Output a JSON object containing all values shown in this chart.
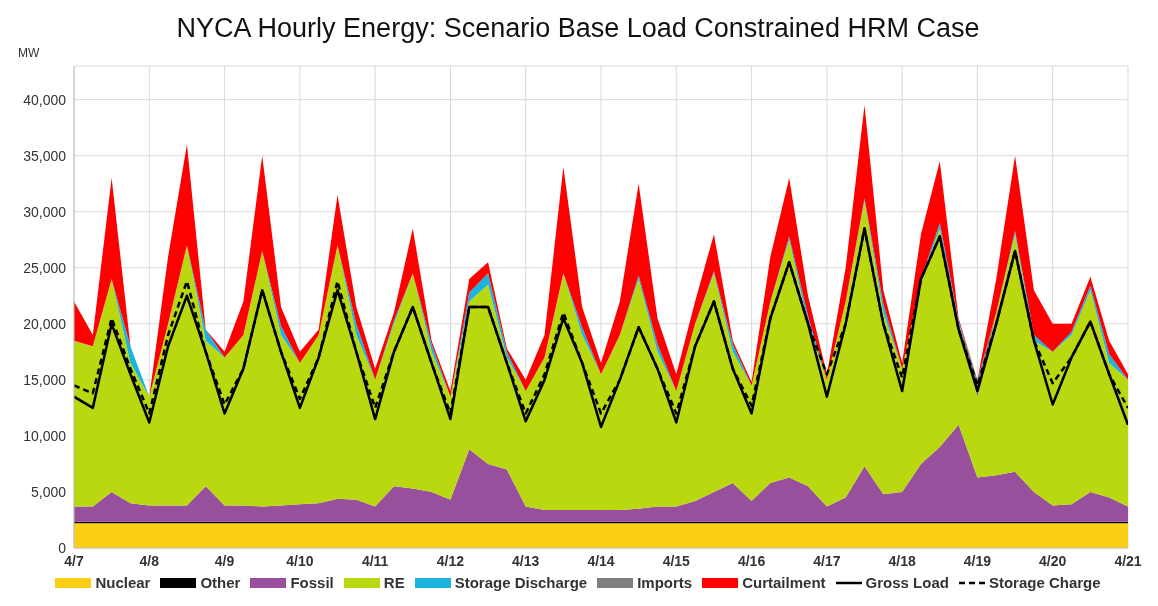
{
  "chart_data": {
    "type": "area",
    "title": "NYCA Hourly Energy: Scenario Base Load Constrained HRM Case",
    "ylabel": "MW",
    "stacked": true,
    "grid": true,
    "legend": "bottom",
    "marker": "none",
    "categories": [
      "4/7",
      null,
      null,
      null,
      "4/8",
      null,
      null,
      null,
      "4/9",
      null,
      null,
      null,
      "4/10",
      null,
      null,
      null,
      "4/11",
      null,
      null,
      null,
      "4/12",
      null,
      null,
      null,
      "4/13",
      null,
      null,
      null,
      "4/14",
      null,
      null,
      null,
      "4/15",
      null,
      null,
      null,
      "4/16",
      null,
      null,
      null,
      "4/17",
      null,
      null,
      null,
      "4/18",
      null,
      null,
      null,
      "4/19",
      null,
      null,
      null,
      "4/20",
      null,
      null,
      null,
      "4/21"
    ],
    "ylim": [
      0,
      43000
    ],
    "yticks": [
      0,
      {
        "value": 5000,
        "label": "5,000"
      },
      {
        "value": 10000,
        "label": "10,000"
      },
      {
        "value": 15000,
        "label": "15,000"
      },
      {
        "value": 20000,
        "label": "20,000"
      },
      {
        "value": 25000,
        "label": "25,000"
      },
      {
        "value": 30000,
        "label": "30,000"
      },
      {
        "value": 35000,
        "label": "35,000"
      },
      {
        "value": 40000,
        "label": "40,000"
      }
    ],
    "series": [
      {
        "name": "Nuclear",
        "color": "#fccf14",
        "values": [
          2200,
          2200,
          2200,
          2200,
          2200,
          2200,
          2200,
          2200,
          2200,
          2200,
          2200,
          2200,
          2200,
          2200,
          2200,
          2200,
          2200,
          2200,
          2200,
          2200,
          2200,
          2200,
          2200,
          2200,
          2200,
          2200,
          2200,
          2200,
          2200,
          2200,
          2200,
          2200,
          2200,
          2200,
          2200,
          2200,
          2200,
          2200,
          2200,
          2200,
          2200,
          2200,
          2200,
          2200,
          2200,
          2200,
          2200,
          2200,
          2200,
          2200,
          2200,
          2200,
          2200,
          2200,
          2200,
          2200,
          2200
        ]
      },
      {
        "name": "Other",
        "color": "#000000",
        "values": [
          150,
          150,
          150,
          150,
          150,
          150,
          150,
          150,
          150,
          150,
          150,
          150,
          150,
          150,
          150,
          150,
          150,
          150,
          150,
          150,
          150,
          150,
          150,
          150,
          150,
          150,
          150,
          150,
          150,
          150,
          150,
          150,
          150,
          150,
          150,
          150,
          150,
          150,
          150,
          150,
          150,
          150,
          150,
          150,
          150,
          150,
          150,
          150,
          150,
          150,
          150,
          150,
          150,
          150,
          150,
          150,
          150
        ]
      },
      {
        "name": "Fossil",
        "color": "#984f9c",
        "values": [
          1350,
          1350,
          2650,
          1650,
          1450,
          1450,
          1450,
          3150,
          1450,
          1450,
          1350,
          1450,
          1550,
          1650,
          2050,
          1950,
          1350,
          3150,
          2950,
          2650,
          1950,
          6450,
          5150,
          4650,
          1350,
          1050,
          1050,
          1050,
          1050,
          1050,
          1150,
          1350,
          1350,
          1850,
          2650,
          3450,
          1850,
          3450,
          3950,
          3150,
          1350,
          2150,
          4950,
          2450,
          2650,
          5150,
          6650,
          8650,
          3950,
          4150,
          4450,
          2650,
          1450,
          1550,
          2650,
          2150,
          1350
        ]
      },
      {
        "name": "RE",
        "color": "#bad80f",
        "values": [
          14800,
          14300,
          19000,
          12500,
          9700,
          16200,
          23200,
          13000,
          13200,
          15200,
          22800,
          15200,
          12600,
          15000,
          22600,
          14700,
          11300,
          14500,
          19200,
          12500,
          9200,
          13200,
          16000,
          10000,
          10300,
          13600,
          21100,
          15600,
          12100,
          15600,
          20500,
          13800,
          10300,
          15800,
          19500,
          11700,
          10300,
          16200,
          21200,
          14500,
          11300,
          17500,
          23700,
          16200,
          11000,
          16500,
          19500,
          8500,
          7200,
          14500,
          21200,
          13500,
          13700,
          15100,
          18000,
          12000,
          11300
        ]
      },
      {
        "name": "Storage Discharge",
        "color": "#1cb3df",
        "values": [
          0,
          0,
          0,
          1500,
          0,
          0,
          0,
          1000,
          0,
          0,
          0,
          800,
          0,
          0,
          0,
          1000,
          0,
          300,
          0,
          700,
          0,
          800,
          1000,
          500,
          0,
          0,
          0,
          700,
          0,
          0,
          300,
          700,
          0,
          0,
          200,
          700,
          0,
          0,
          300,
          700,
          0,
          0,
          200,
          800,
          0,
          0,
          500,
          800,
          0,
          0,
          300,
          500,
          0,
          300,
          400,
          800,
          0
        ]
      },
      {
        "name": "Imports",
        "color": "#7f7f7f",
        "values": [
          null,
          null,
          null,
          null,
          null,
          null,
          null,
          null,
          null,
          null,
          null,
          null,
          null,
          null,
          null,
          null,
          null,
          null,
          null,
          null,
          null,
          null,
          null,
          null,
          null,
          null,
          null,
          null,
          null,
          null,
          null,
          null,
          null,
          null,
          null,
          null,
          null,
          null,
          null,
          null,
          null,
          null,
          null,
          null,
          null,
          null,
          null,
          0,
          1500,
          0,
          null,
          null,
          null,
          null,
          null,
          null,
          null
        ]
      },
      {
        "name": "Curtailment",
        "color": "#ff0000",
        "values": [
          3500,
          1000,
          9000,
          0,
          0,
          6000,
          9000,
          0,
          500,
          3000,
          8500,
          1700,
          1000,
          500,
          4500,
          1500,
          1000,
          700,
          4000,
          300,
          500,
          1200,
          1000,
          300,
          1000,
          2000,
          9500,
          1800,
          1000,
          3000,
          8200,
          2300,
          1500,
          2000,
          3300,
          300,
          300,
          4000,
          5200,
          1800,
          500,
          3000,
          8300,
          1200,
          500,
          4000,
          5500,
          200,
          0,
          3000,
          6700,
          4000,
          2500,
          700,
          800,
          1200,
          500
        ]
      },
      {
        "name": "Gross Load",
        "type": "line",
        "color": "#000000",
        "line_style": "solid",
        "values": [
          13500,
          12500,
          20000,
          15500,
          11200,
          18000,
          22500,
          17500,
          12000,
          16000,
          23000,
          17500,
          12500,
          17000,
          23000,
          17500,
          11500,
          17500,
          21500,
          16500,
          11500,
          21500,
          21500,
          16500,
          11300,
          15000,
          20500,
          16500,
          10800,
          15000,
          19700,
          16000,
          11200,
          18000,
          22000,
          16000,
          12000,
          20500,
          25500,
          20000,
          13500,
          20000,
          28500,
          20000,
          14000,
          24000,
          27800,
          19500,
          14000,
          20000,
          26500,
          18500,
          12800,
          17000,
          20200,
          15500,
          11000
        ]
      },
      {
        "name": "Storage Charge",
        "type": "line",
        "color": "#000000",
        "line_style": "dashed",
        "values": [
          14500,
          13800,
          20500,
          16000,
          12000,
          19000,
          23800,
          17500,
          12800,
          16000,
          23000,
          17500,
          13300,
          17000,
          23800,
          17500,
          12500,
          17500,
          21500,
          16500,
          12000,
          21500,
          21500,
          16500,
          12000,
          15500,
          21000,
          16500,
          12000,
          15000,
          19700,
          16000,
          12000,
          18000,
          22000,
          16000,
          12700,
          20500,
          25500,
          20000,
          15500,
          20000,
          28500,
          20000,
          15200,
          24000,
          27800,
          19500,
          14500,
          20000,
          26500,
          18500,
          14700,
          17000,
          20200,
          15500,
          12500
        ]
      }
    ]
  }
}
